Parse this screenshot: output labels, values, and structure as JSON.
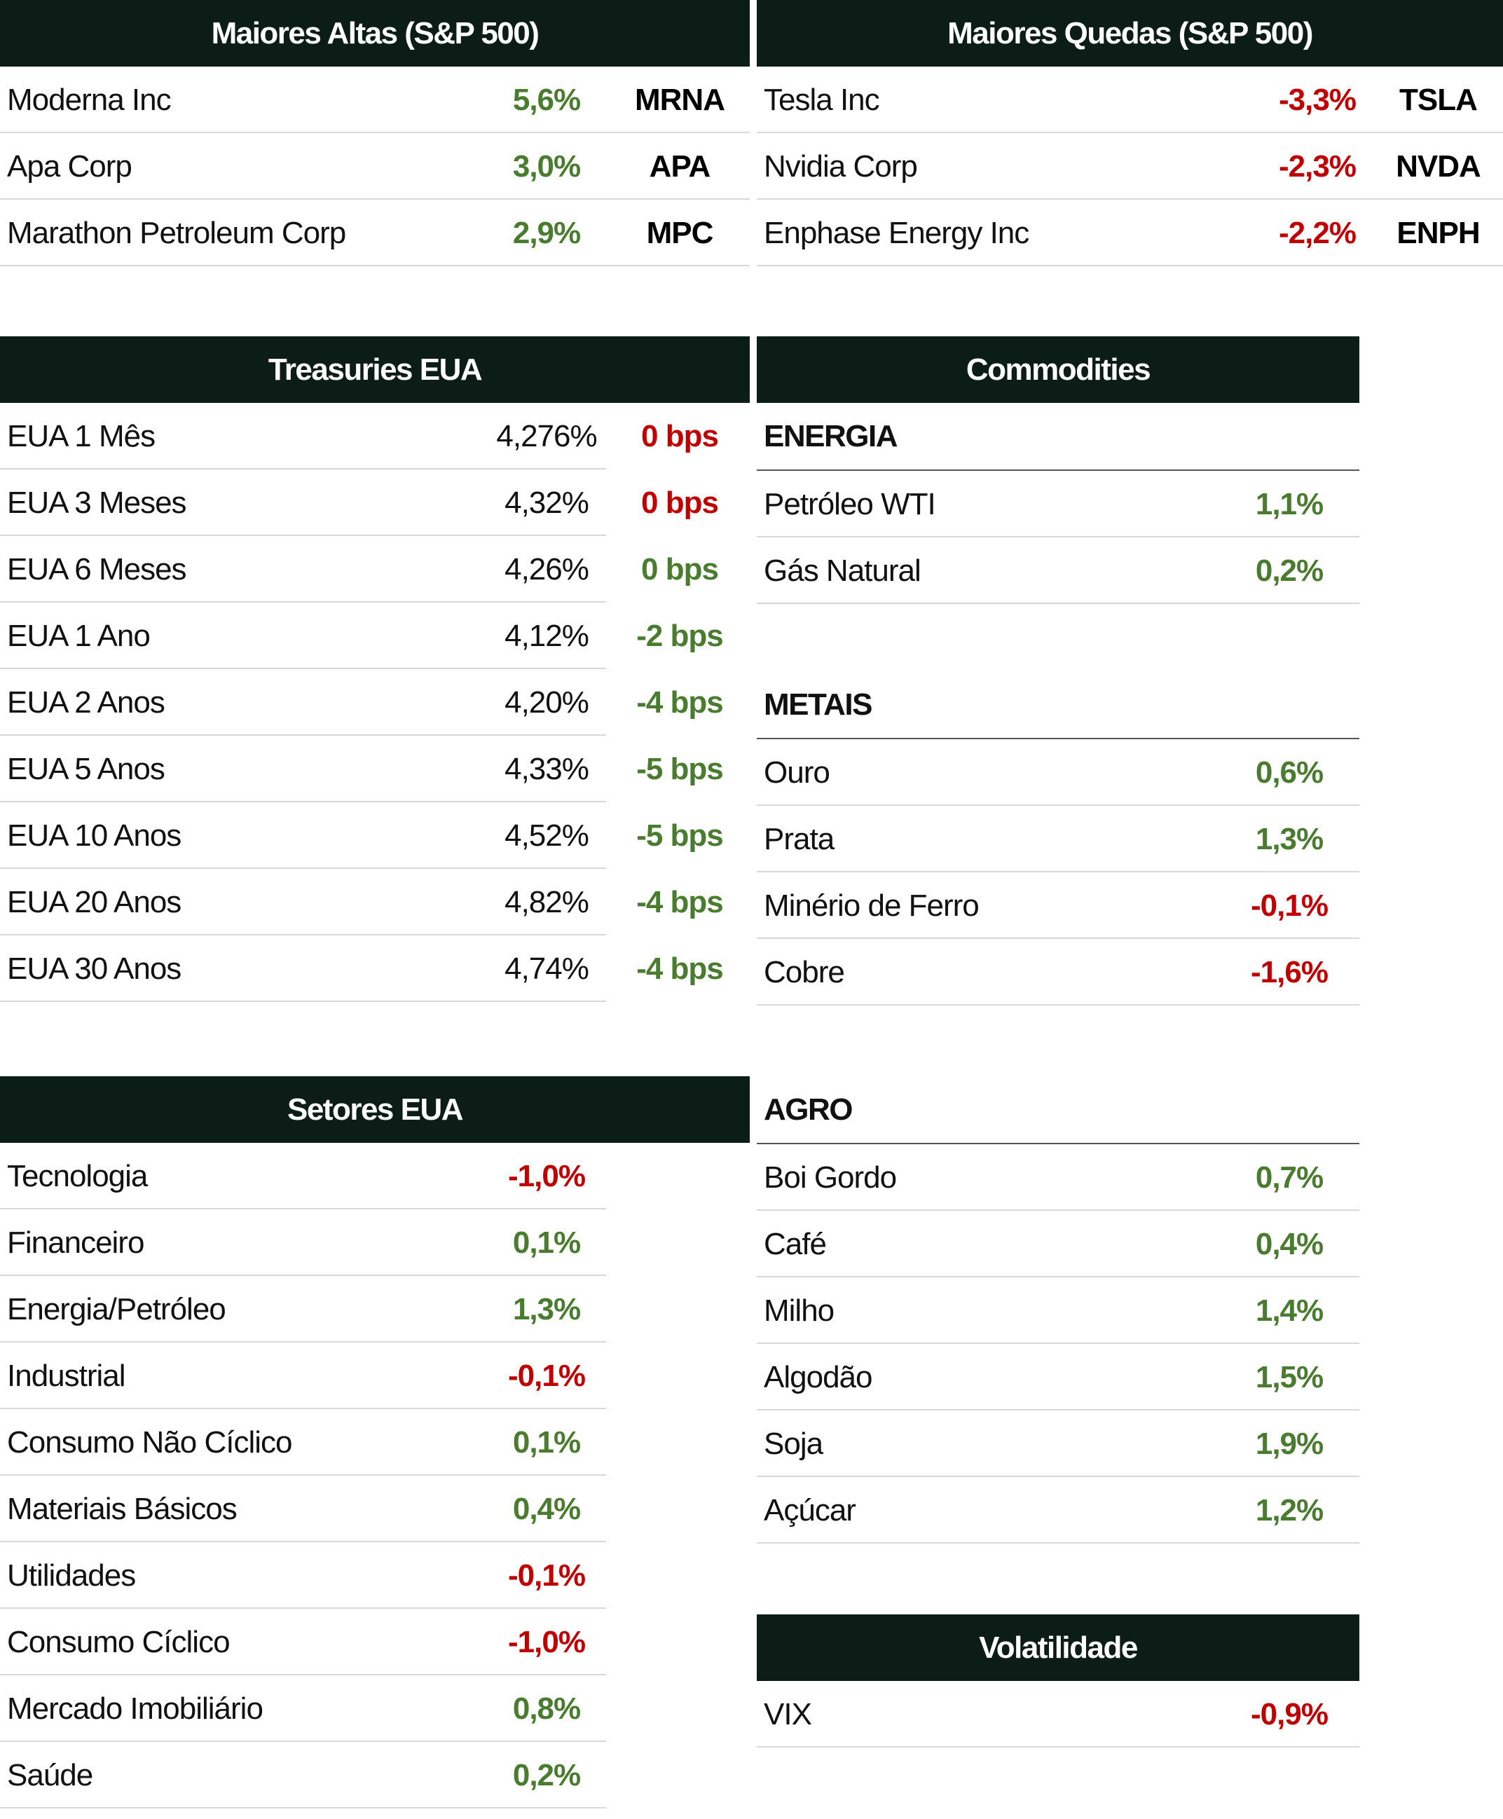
{
  "gainers": {
    "title": "Maiores Altas (S&P 500)",
    "rows": [
      {
        "name": "Moderna Inc",
        "value": "5,6%",
        "ticker": "MRNA"
      },
      {
        "name": "Apa Corp",
        "value": "3,0%",
        "ticker": "APA"
      },
      {
        "name": "Marathon Petroleum Corp",
        "value": "2,9%",
        "ticker": "MPC"
      }
    ]
  },
  "losers": {
    "title": "Maiores Quedas (S&P 500)",
    "rows": [
      {
        "name": "Tesla Inc",
        "value": "-3,3%",
        "ticker": "TSLA"
      },
      {
        "name": "Nvidia Corp",
        "value": "-2,3%",
        "ticker": "NVDA"
      },
      {
        "name": "Enphase Energy Inc",
        "value": "-2,2%",
        "ticker": "ENPH"
      }
    ]
  },
  "treasuries": {
    "title": "Treasuries EUA",
    "rows": [
      {
        "name": "EUA 1 Mês",
        "yield": "4,276%",
        "change": "0 bps"
      },
      {
        "name": "EUA 3 Meses",
        "yield": "4,32%",
        "change": "0 bps"
      },
      {
        "name": "EUA 6 Meses",
        "yield": "4,26%",
        "change": "0 bps"
      },
      {
        "name": "EUA 1 Ano",
        "yield": "4,12%",
        "change": "-2 bps"
      },
      {
        "name": "EUA 2 Anos",
        "yield": "4,20%",
        "change": "-4 bps"
      },
      {
        "name": "EUA 5 Anos",
        "yield": "4,33%",
        "change": "-5 bps"
      },
      {
        "name": "EUA 10 Anos",
        "yield": "4,52%",
        "change": "-5 bps"
      },
      {
        "name": "EUA 20 Anos",
        "yield": "4,82%",
        "change": "-4 bps"
      },
      {
        "name": "EUA 30 Anos",
        "yield": "4,74%",
        "change": "-4 bps"
      }
    ]
  },
  "commodities": {
    "title": "Commodities",
    "energy": {
      "label": "ENERGIA",
      "rows": [
        {
          "name": "Petróleo WTI",
          "value": "1,1%"
        },
        {
          "name": "Gás Natural",
          "value": "0,2%"
        }
      ]
    },
    "metals": {
      "label": "METAIS",
      "rows": [
        {
          "name": "Ouro",
          "value": "0,6%"
        },
        {
          "name": "Prata",
          "value": "1,3%"
        },
        {
          "name": "Minério de Ferro",
          "value": "-0,1%"
        },
        {
          "name": "Cobre",
          "value": "-1,6%"
        }
      ]
    },
    "agro": {
      "label": "AGRO",
      "rows": [
        {
          "name": "Boi Gordo",
          "value": "0,7%"
        },
        {
          "name": "Café",
          "value": "0,4%"
        },
        {
          "name": "Milho",
          "value": "1,4%"
        },
        {
          "name": "Algodão",
          "value": "1,5%"
        },
        {
          "name": "Soja",
          "value": "1,9%"
        },
        {
          "name": "Açúcar",
          "value": "1,2%"
        }
      ]
    }
  },
  "sectors": {
    "title": "Setores EUA",
    "rows": [
      {
        "name": "Tecnologia",
        "value": "-1,0%"
      },
      {
        "name": "Financeiro",
        "value": "0,1%"
      },
      {
        "name": "Energia/Petróleo",
        "value": "1,3%"
      },
      {
        "name": "Industrial",
        "value": "-0,1%"
      },
      {
        "name": "Consumo Não Cíclico",
        "value": "0,1%"
      },
      {
        "name": "Materiais Básicos",
        "value": "0,4%"
      },
      {
        "name": "Utilidades",
        "value": "-0,1%"
      },
      {
        "name": "Consumo Cíclico",
        "value": "-1,0%"
      },
      {
        "name": "Mercado Imobiliário",
        "value": "0,8%"
      },
      {
        "name": "Saúde",
        "value": "0,2%"
      }
    ]
  },
  "volatility": {
    "title": "Volatilidade",
    "rows": [
      {
        "name": "VIX",
        "value": "-0,9%"
      }
    ]
  },
  "colors": {
    "positive": "#4a7c2f",
    "negative": "#c00000",
    "header_bg": "#0c1c17"
  }
}
